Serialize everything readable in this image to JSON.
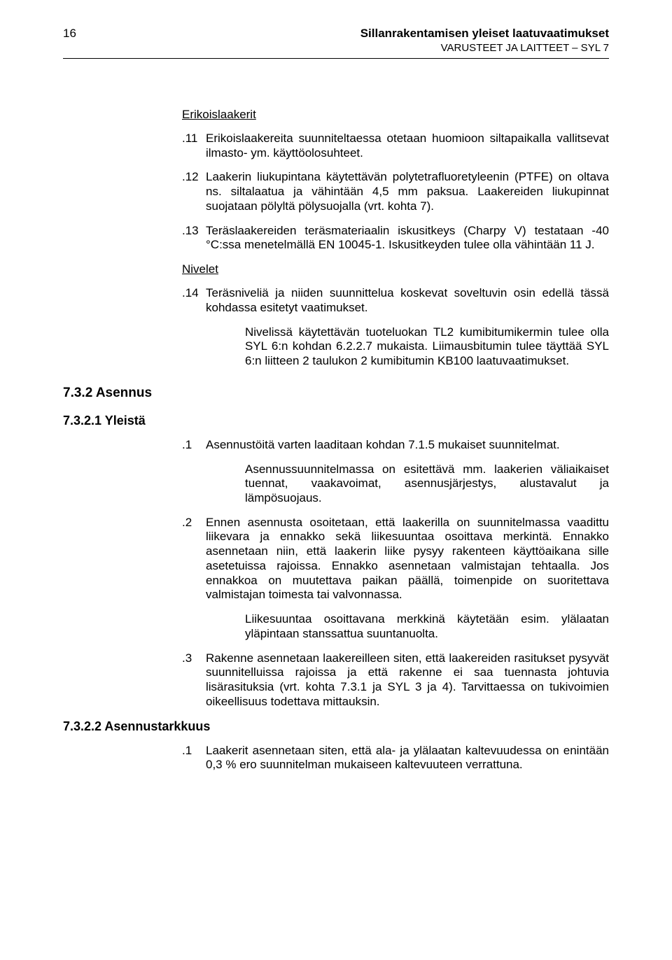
{
  "header": {
    "page_number": "16",
    "title": "Sillanrakentamisen yleiset laatuvaatimukset",
    "subtitle": "VARUSTEET JA LAITTEET – SYL 7"
  },
  "body": {
    "s1_title": "Erikoislaakerit",
    "p11_num": ".11",
    "p11_txt": "Erikoislaakereita suunniteltaessa otetaan huomioon siltapaikalla vallitsevat ilmasto- ym. käyttöolosuhteet.",
    "p12_num": ".12",
    "p12_txt": "Laakerin liukupintana käytettävän polytetrafluoretyleenin (PTFE) on oltava ns. siltalaatua ja vähintään 4,5 mm paksua. Laakereiden liukupinnat suojataan pölyltä pölysuojalla (vrt. kohta 7).",
    "p13_num": ".13",
    "p13_txt": "Teräslaakereiden teräsmateriaalin iskusitkeys (Charpy V) testataan -40 °C:ssa menetelmällä EN 10045-1. Iskusitkeyden tulee olla vähintään 11 J.",
    "s2_title": "Nivelet",
    "p14_num": ".14",
    "p14_txt": "Teräsniveliä ja niiden suunnittelua koskevat soveltuvin osin edellä tässä kohdassa esitetyt vaatimukset.",
    "p14_inner": "Nivelissä käytettävän tuoteluokan TL2 kumibitumikermin tulee olla SYL 6:n kohdan 6.2.2.7 mukaista. Liimausbitumin tulee täyttää SYL 6:n liitteen 2 taulukon 2 kumibitumin KB100 laatuvaatimukset.",
    "sec732": "7.3.2  Asennus",
    "sec7321": "7.3.2.1  Yleistä",
    "p7321_1_num": ".1",
    "p7321_1_txt": "Asennustöitä varten laaditaan kohdan 7.1.5 mukaiset suunnitelmat.",
    "p7321_1_inner": "Asennussuunnitelmassa on esitettävä mm. laakerien väliaikaiset tuennat, vaakavoimat, asennusjärjestys, alustavalut ja lämpösuojaus.",
    "p7321_2_num": ".2",
    "p7321_2_txt": "Ennen asennusta osoitetaan, että laakerilla on suunnitelmassa vaadittu liikevara ja ennakko sekä liikesuuntaa osoittava merkintä. Ennakko asennetaan niin, että laakerin liike pysyy rakenteen käyttöaikana sille asetetuissa rajoissa. Ennakko asennetaan valmistajan tehtaalla. Jos ennakkoa on muutettava paikan päällä, toimenpide on suoritettava valmistajan toimesta tai valvonnassa.",
    "p7321_2_inner": "Liikesuuntaa osoittavana merkkinä käytetään esim. ylälaatan yläpintaan stanssattua suuntanuolta.",
    "p7321_3_num": ".3",
    "p7321_3_txt": "Rakenne asennetaan laakereilleen siten, että laakereiden rasitukset pysyvät suunnitelluissa rajoissa ja että rakenne ei saa tuennasta johtuvia lisärasituksia (vrt. kohta 7.3.1 ja SYL 3 ja 4). Tarvittaessa on tukivoimien oikeellisuus todettava mittauksin.",
    "sec7322": "7.3.2.2  Asennustarkkuus",
    "p7322_1_num": ".1",
    "p7322_1_txt": "Laakerit asennetaan siten, että ala- ja ylälaatan kaltevuudessa on enintään 0,3 % ero suunnitelman mukaiseen kaltevuuteen verrattuna."
  }
}
